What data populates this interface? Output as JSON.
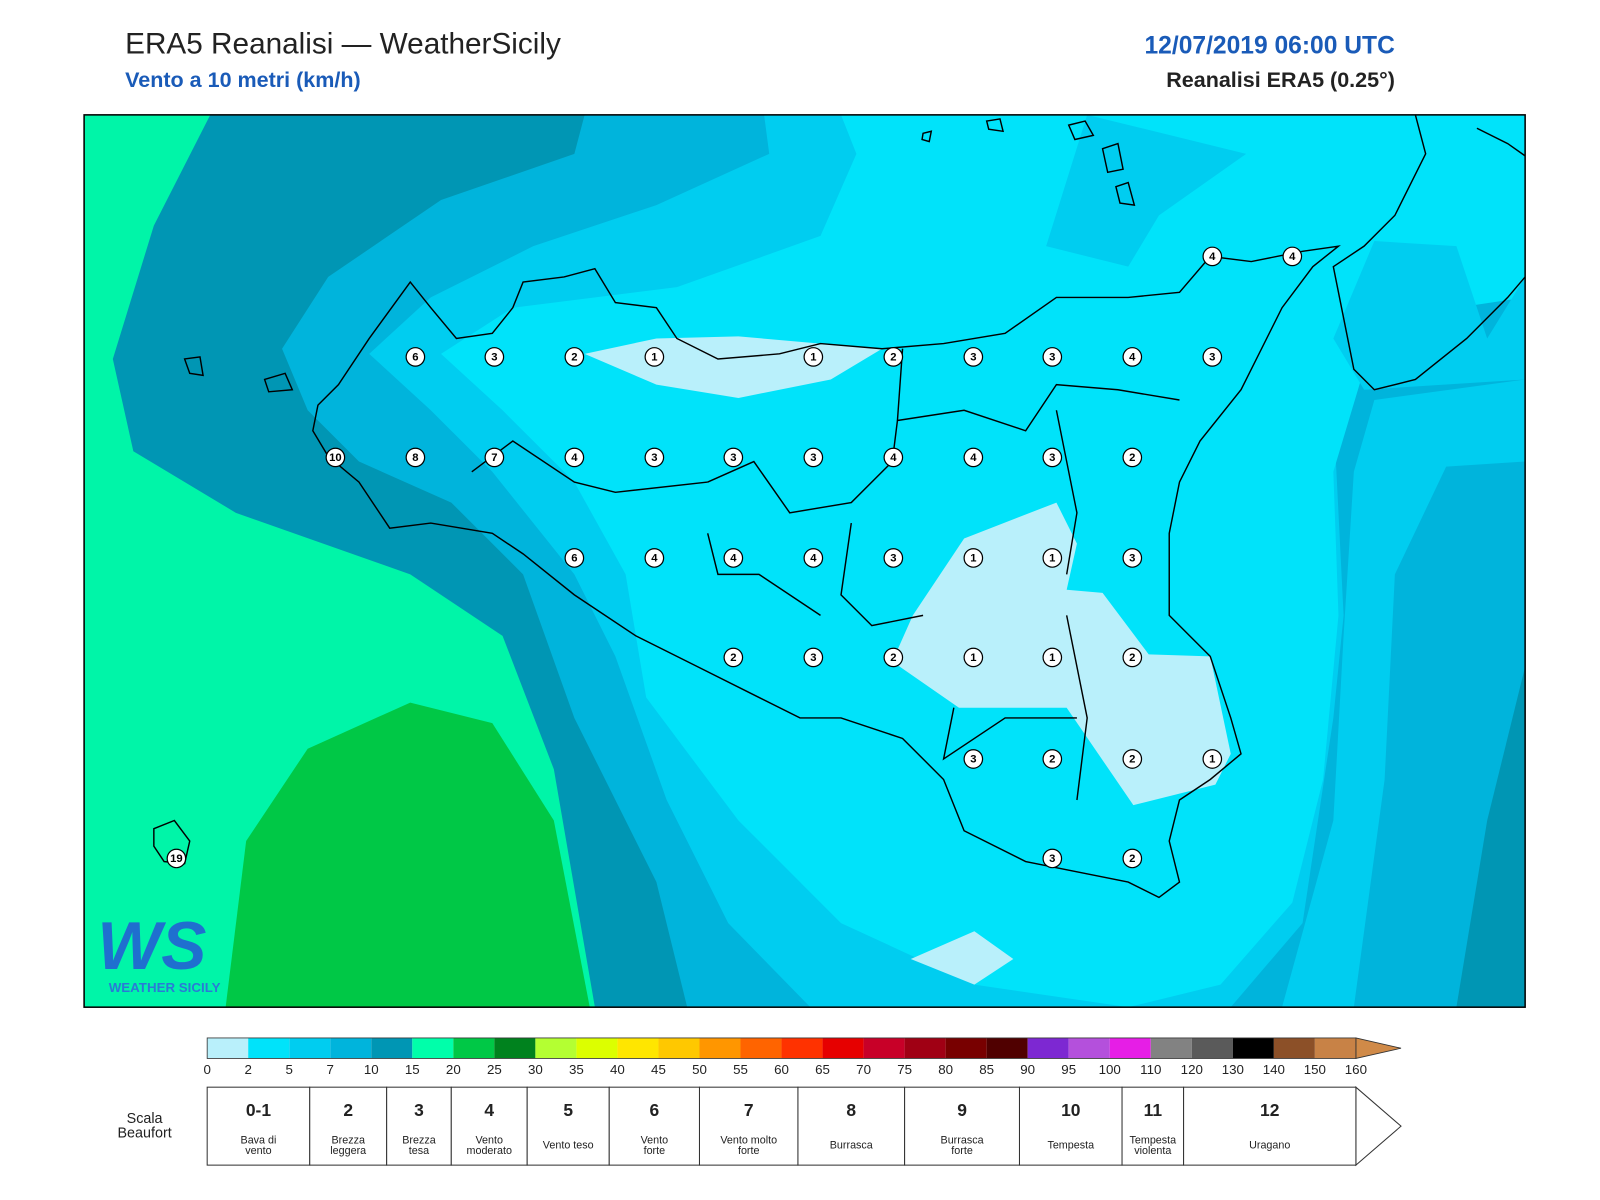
{
  "header": {
    "title": "ERA5 Reanalisi — WeatherSicily",
    "subtitle": "Vento a 10 metri (km/h)",
    "datetime": "12/07/2019 06:00 UTC",
    "source": "Reanalisi ERA5 (0.25°)"
  },
  "map": {
    "stations": [
      4,
      4,
      6,
      3,
      2,
      1,
      1,
      2,
      3,
      3,
      4,
      3,
      10,
      8,
      7,
      4,
      3,
      3,
      3,
      4,
      4,
      3,
      2,
      6,
      4,
      4,
      4,
      3,
      1,
      1,
      3,
      2,
      3,
      2,
      1,
      1,
      2,
      3,
      2,
      2,
      1,
      3,
      2,
      19
    ],
    "logo": {
      "mark": "WS",
      "text": "WEATHER SICILY"
    }
  },
  "legend": {
    "ticks": [
      0,
      2,
      5,
      7,
      10,
      15,
      20,
      25,
      30,
      35,
      40,
      45,
      50,
      55,
      60,
      65,
      70,
      75,
      80,
      85,
      90,
      95,
      100,
      110,
      120,
      130,
      140,
      150,
      160
    ],
    "colors": [
      "#b9f0fb",
      "#00e3fa",
      "#00cdf0",
      "#00b4dc",
      "#0096b4",
      "#00ffaa",
      "#00c846",
      "#00821e",
      "#b4ff32",
      "#dcff00",
      "#ffe600",
      "#ffc800",
      "#ff9600",
      "#ff6400",
      "#ff3200",
      "#e60000",
      "#c80028",
      "#a00014",
      "#780000",
      "#500000",
      "#7d28d2",
      "#b450dc",
      "#e61ee6",
      "#828282",
      "#5a5a5a",
      "#000000",
      "#8c5028",
      "#c88246"
    ],
    "arrow_color": "#d08a48"
  },
  "beaufort": {
    "title": [
      "Scala",
      "Beaufort"
    ],
    "levels": [
      {
        "number": "0-1",
        "label": [
          "Bava di",
          "vento"
        ]
      },
      {
        "number": 2,
        "label": [
          "Brezza",
          "leggera"
        ]
      },
      {
        "number": 3,
        "label": [
          "Brezza",
          "tesa"
        ]
      },
      {
        "number": 4,
        "label": [
          "Vento",
          "moderato"
        ]
      },
      {
        "number": 5,
        "label": [
          "Vento teso"
        ]
      },
      {
        "number": 6,
        "label": [
          "Vento",
          "forte"
        ]
      },
      {
        "number": 7,
        "label": [
          "Vento molto",
          "forte"
        ]
      },
      {
        "number": 8,
        "label": [
          "Burrasca"
        ]
      },
      {
        "number": 9,
        "label": [
          "Burrasca",
          "forte"
        ]
      },
      {
        "number": 10,
        "label": [
          "Tempesta"
        ]
      },
      {
        "number": 11,
        "label": [
          "Tempesta",
          "violenta"
        ]
      },
      {
        "number": 12,
        "label": [
          "Uragano"
        ]
      }
    ]
  }
}
